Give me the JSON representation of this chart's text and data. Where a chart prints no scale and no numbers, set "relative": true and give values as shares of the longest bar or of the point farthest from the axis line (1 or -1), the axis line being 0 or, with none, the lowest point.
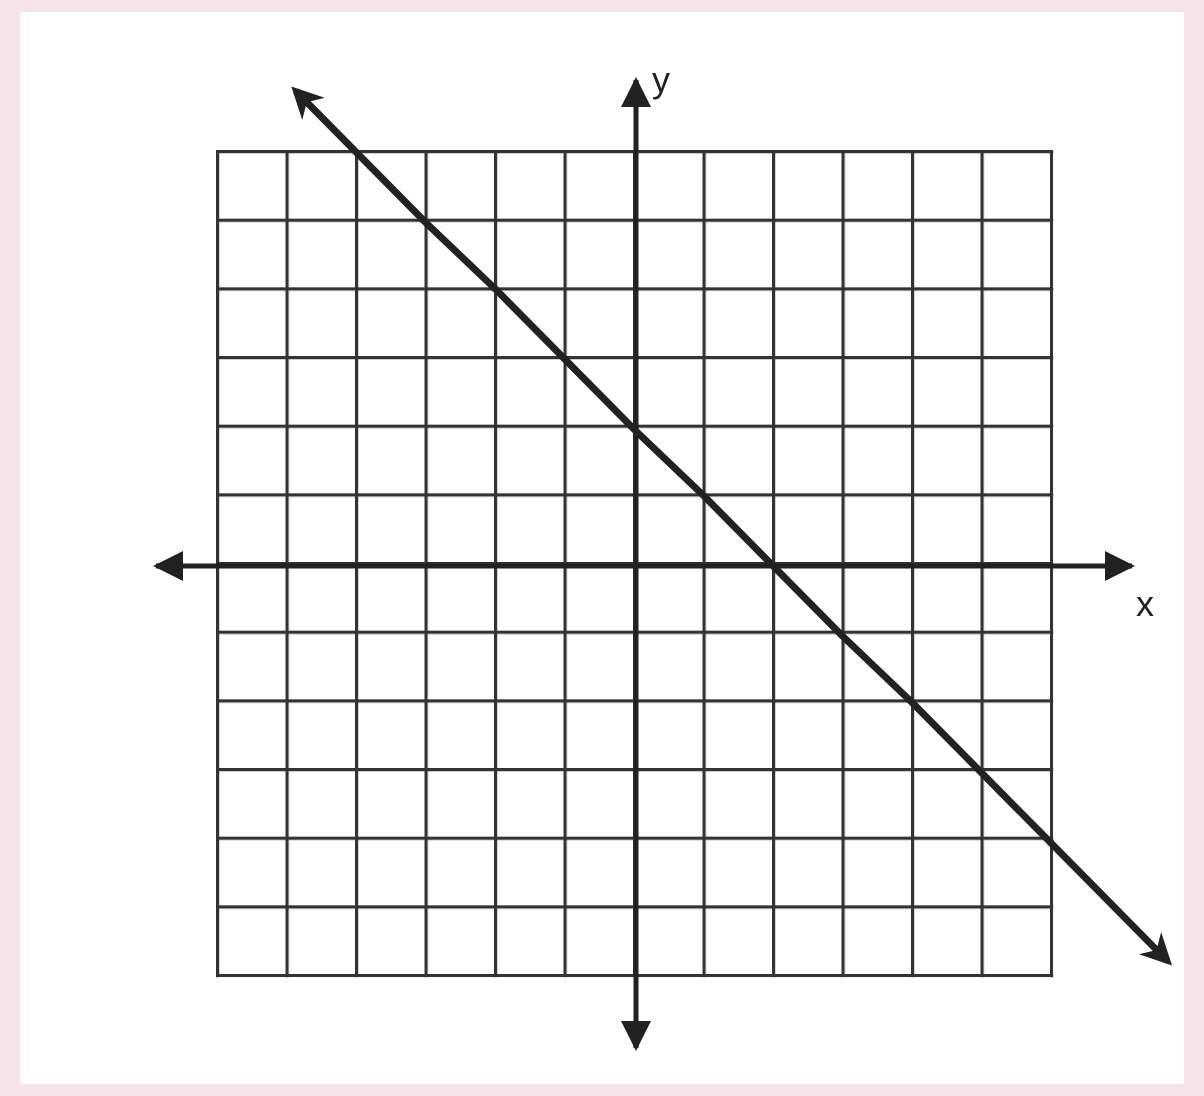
{
  "chart_data": {
    "type": "line",
    "relative": true,
    "xlabel": "x",
    "ylabel": "y",
    "categories": [
      null,
      null,
      null,
      null,
      null,
      null,
      null,
      null,
      null,
      null,
      null
    ],
    "series": [
      {
        "color": "#222222",
        "values": [
          1,
          0.83,
          0.67,
          0.5,
          0.33,
          0.17,
          0,
          -0.17,
          -0.33,
          -0.5,
          -0.67
        ]
      }
    ],
    "marker": "none",
    "line_style": "solid"
  }
}
